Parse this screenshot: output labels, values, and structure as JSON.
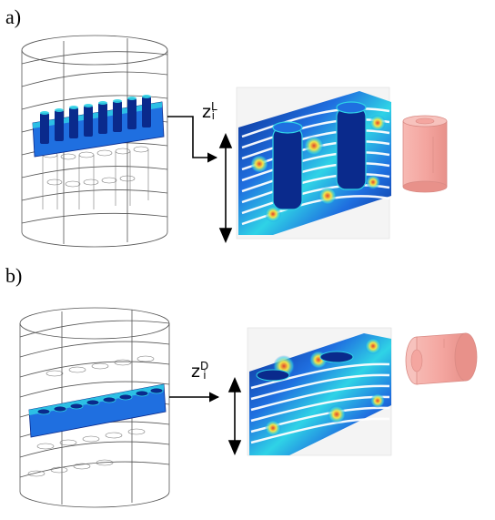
{
  "panels": [
    {
      "label": "a)",
      "z_base": "z",
      "z_sup": "L",
      "z_sub": "i"
    },
    {
      "label": "b)",
      "z_base": "z",
      "z_sup": "D",
      "z_sub": "i"
    }
  ],
  "colors": {
    "field_dark": "#0a2a8c",
    "field_mid": "#1f6fe0",
    "field_cyan": "#2fd3e6",
    "field_yellow": "#f2e64a",
    "field_red": "#e2452b",
    "cylinder_pink": "#f4a6a0",
    "wire": "#333333"
  }
}
